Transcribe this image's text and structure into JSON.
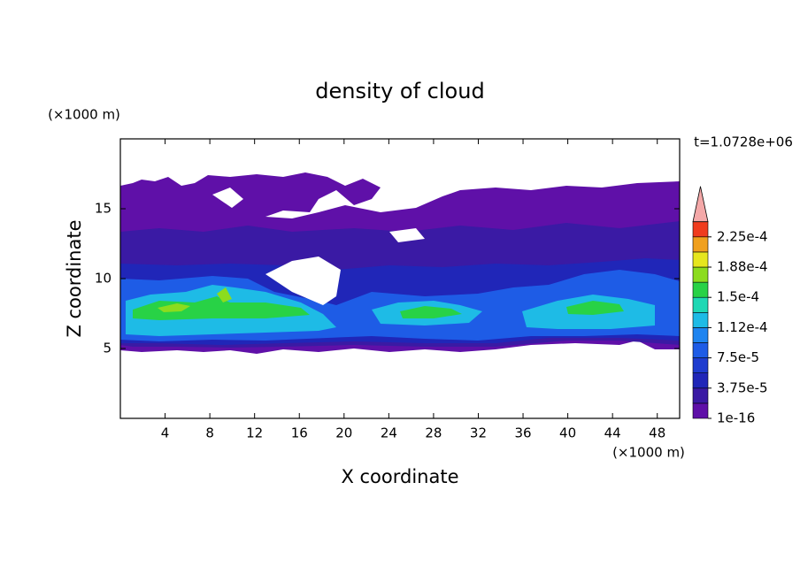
{
  "chart_data": {
    "type": "contour",
    "title": "density of cloud",
    "x_label": "X coordinate",
    "y_label": "Z coordinate",
    "x_unit": "(×1000 m)",
    "y_unit": "(×1000 m)",
    "time_label": "t=1.0728e+06",
    "xlim": [
      0,
      50
    ],
    "ylim": [
      0,
      20
    ],
    "xticks": [
      4,
      8,
      12,
      16,
      20,
      24,
      28,
      32,
      36,
      40,
      44,
      48
    ],
    "yticks": [
      5,
      10,
      15
    ],
    "levels": [
      {
        "value": 1e-16,
        "label": "1e-16"
      },
      {
        "value": 3.75e-05,
        "label": "3.75e-5"
      },
      {
        "value": 7.5e-05,
        "label": "7.5e-5"
      },
      {
        "value": 0.000112,
        "label": "1.12e-4"
      },
      {
        "value": 0.00015,
        "label": "1.5e-4"
      },
      {
        "value": 0.000188,
        "label": "1.88e-4"
      },
      {
        "value": 0.000225,
        "label": "2.25e-4"
      }
    ],
    "colors": [
      "#5f10a8",
      "#3a1aa4",
      "#2026b8",
      "#1e3ccf",
      "#1e5ce6",
      "#1e84f0",
      "#1ebbe6",
      "#1ed8b4",
      "#28d246",
      "#8cdc1e",
      "#e6e61e",
      "#f0a01e",
      "#f03c1e"
    ],
    "extend_color": "#f4a8a8"
  }
}
